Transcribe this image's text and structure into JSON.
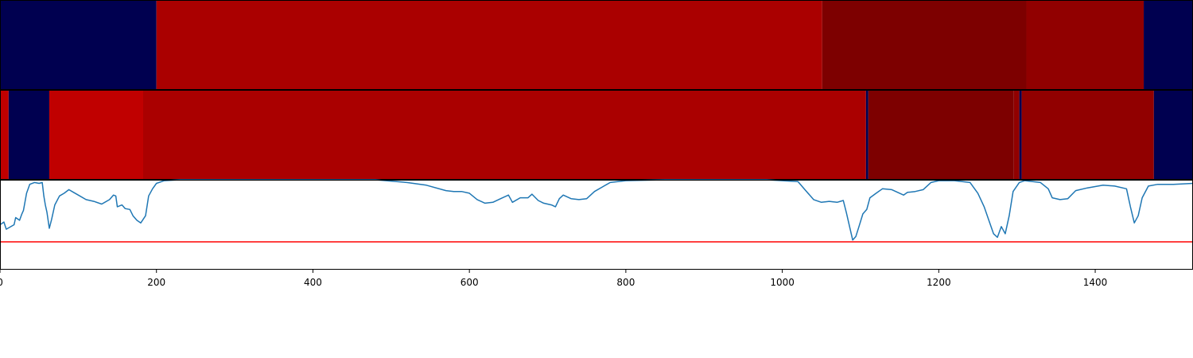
{
  "chart_data": [
    {
      "type": "heatmap",
      "title": "",
      "xlabel": "",
      "ylabel": "",
      "xlim": [
        0,
        1525
      ],
      "segments": [
        {
          "start": 0,
          "end": 200,
          "color": "#000050"
        },
        {
          "start": 200,
          "end": 1051,
          "color": "#aa0000"
        },
        {
          "start": 1051,
          "end": 1312,
          "color": "#7d0000"
        },
        {
          "start": 1312,
          "end": 1462,
          "color": "#910000"
        },
        {
          "start": 1462,
          "end": 1525,
          "color": "#000050"
        }
      ]
    },
    {
      "type": "heatmap",
      "title": "",
      "xlabel": "",
      "ylabel": "",
      "xlim": [
        0,
        1525
      ],
      "segments": [
        {
          "start": 0,
          "end": 11,
          "color": "#c00000"
        },
        {
          "start": 11,
          "end": 63,
          "color": "#000050"
        },
        {
          "start": 63,
          "end": 183,
          "color": "#c00000"
        },
        {
          "start": 183,
          "end": 1107,
          "color": "#aa0000"
        },
        {
          "start": 1107,
          "end": 1110,
          "color": "#000050"
        },
        {
          "start": 1110,
          "end": 1296,
          "color": "#7d0000"
        },
        {
          "start": 1296,
          "end": 1303,
          "color": "#910000"
        },
        {
          "start": 1303,
          "end": 1306,
          "color": "#000050"
        },
        {
          "start": 1306,
          "end": 1475,
          "color": "#910000"
        },
        {
          "start": 1475,
          "end": 1525,
          "color": "#000050"
        }
      ]
    },
    {
      "type": "line",
      "title": "",
      "xlabel": "",
      "ylabel": "",
      "xlim": [
        0,
        1525
      ],
      "ylim": [
        0,
        1
      ],
      "xticks": [
        0,
        200,
        400,
        600,
        800,
        1000,
        1200,
        1400
      ],
      "tick_labels": [
        "0",
        "200",
        "400",
        "600",
        "800",
        "1000",
        "1200",
        "1400"
      ],
      "threshold": {
        "value": 0.31,
        "color": "#ff0000"
      },
      "series": [
        {
          "color": "#1f77b4",
          "points": [
            [
              0,
              0.5
            ],
            [
              5,
              0.53
            ],
            [
              8,
              0.45
            ],
            [
              12,
              0.47
            ],
            [
              18,
              0.5
            ],
            [
              20,
              0.58
            ],
            [
              25,
              0.55
            ],
            [
              28,
              0.62
            ],
            [
              30,
              0.66
            ],
            [
              34,
              0.85
            ],
            [
              38,
              0.95
            ],
            [
              44,
              0.97
            ],
            [
              50,
              0.96
            ],
            [
              54,
              0.97
            ],
            [
              56,
              0.82
            ],
            [
              58,
              0.72
            ],
            [
              60,
              0.64
            ],
            [
              63,
              0.46
            ],
            [
              66,
              0.56
            ],
            [
              70,
              0.72
            ],
            [
              76,
              0.82
            ],
            [
              82,
              0.85
            ],
            [
              88,
              0.89
            ],
            [
              94,
              0.86
            ],
            [
              100,
              0.83
            ],
            [
              110,
              0.78
            ],
            [
              120,
              0.76
            ],
            [
              130,
              0.73
            ],
            [
              140,
              0.78
            ],
            [
              145,
              0.83
            ],
            [
              148,
              0.82
            ],
            [
              150,
              0.7
            ],
            [
              156,
              0.72
            ],
            [
              160,
              0.68
            ],
            [
              166,
              0.67
            ],
            [
              170,
              0.6
            ],
            [
              175,
              0.55
            ],
            [
              180,
              0.52
            ],
            [
              186,
              0.6
            ],
            [
              190,
              0.82
            ],
            [
              195,
              0.9
            ],
            [
              200,
              0.96
            ],
            [
              210,
              0.99
            ],
            [
              230,
              1.0
            ],
            [
              300,
              1.0
            ],
            [
              400,
              1.0
            ],
            [
              480,
              1.0
            ],
            [
              520,
              0.97
            ],
            [
              545,
              0.94
            ],
            [
              570,
              0.88
            ],
            [
              580,
              0.87
            ],
            [
              590,
              0.87
            ],
            [
              600,
              0.85
            ],
            [
              610,
              0.78
            ],
            [
              620,
              0.74
            ],
            [
              630,
              0.75
            ],
            [
              640,
              0.79
            ],
            [
              650,
              0.83
            ],
            [
              655,
              0.75
            ],
            [
              665,
              0.8
            ],
            [
              675,
              0.8
            ],
            [
              680,
              0.84
            ],
            [
              688,
              0.77
            ],
            [
              695,
              0.74
            ],
            [
              705,
              0.72
            ],
            [
              710,
              0.7
            ],
            [
              715,
              0.79
            ],
            [
              720,
              0.83
            ],
            [
              730,
              0.79
            ],
            [
              740,
              0.78
            ],
            [
              750,
              0.79
            ],
            [
              760,
              0.87
            ],
            [
              770,
              0.92
            ],
            [
              780,
              0.97
            ],
            [
              800,
              0.99
            ],
            [
              850,
              1.0
            ],
            [
              900,
              1.0
            ],
            [
              980,
              1.0
            ],
            [
              1020,
              0.98
            ],
            [
              1030,
              0.88
            ],
            [
              1040,
              0.78
            ],
            [
              1050,
              0.75
            ],
            [
              1060,
              0.76
            ],
            [
              1070,
              0.75
            ],
            [
              1078,
              0.77
            ],
            [
              1082,
              0.63
            ],
            [
              1086,
              0.48
            ],
            [
              1090,
              0.33
            ],
            [
              1094,
              0.37
            ],
            [
              1098,
              0.48
            ],
            [
              1103,
              0.62
            ],
            [
              1108,
              0.67
            ],
            [
              1112,
              0.8
            ],
            [
              1120,
              0.85
            ],
            [
              1128,
              0.9
            ],
            [
              1140,
              0.89
            ],
            [
              1155,
              0.83
            ],
            [
              1160,
              0.86
            ],
            [
              1170,
              0.87
            ],
            [
              1180,
              0.89
            ],
            [
              1190,
              0.97
            ],
            [
              1200,
              0.99
            ],
            [
              1220,
              0.99
            ],
            [
              1240,
              0.97
            ],
            [
              1250,
              0.85
            ],
            [
              1258,
              0.7
            ],
            [
              1264,
              0.55
            ],
            [
              1270,
              0.4
            ],
            [
              1275,
              0.36
            ],
            [
              1280,
              0.48
            ],
            [
              1285,
              0.4
            ],
            [
              1290,
              0.6
            ],
            [
              1295,
              0.87
            ],
            [
              1303,
              0.97
            ],
            [
              1310,
              0.99
            ],
            [
              1330,
              0.97
            ],
            [
              1340,
              0.9
            ],
            [
              1345,
              0.8
            ],
            [
              1355,
              0.78
            ],
            [
              1365,
              0.79
            ],
            [
              1375,
              0.88
            ],
            [
              1390,
              0.91
            ],
            [
              1410,
              0.94
            ],
            [
              1425,
              0.93
            ],
            [
              1440,
              0.9
            ],
            [
              1445,
              0.7
            ],
            [
              1450,
              0.52
            ],
            [
              1455,
              0.6
            ],
            [
              1460,
              0.8
            ],
            [
              1468,
              0.93
            ],
            [
              1480,
              0.95
            ],
            [
              1500,
              0.95
            ],
            [
              1525,
              0.96
            ]
          ]
        }
      ]
    }
  ]
}
